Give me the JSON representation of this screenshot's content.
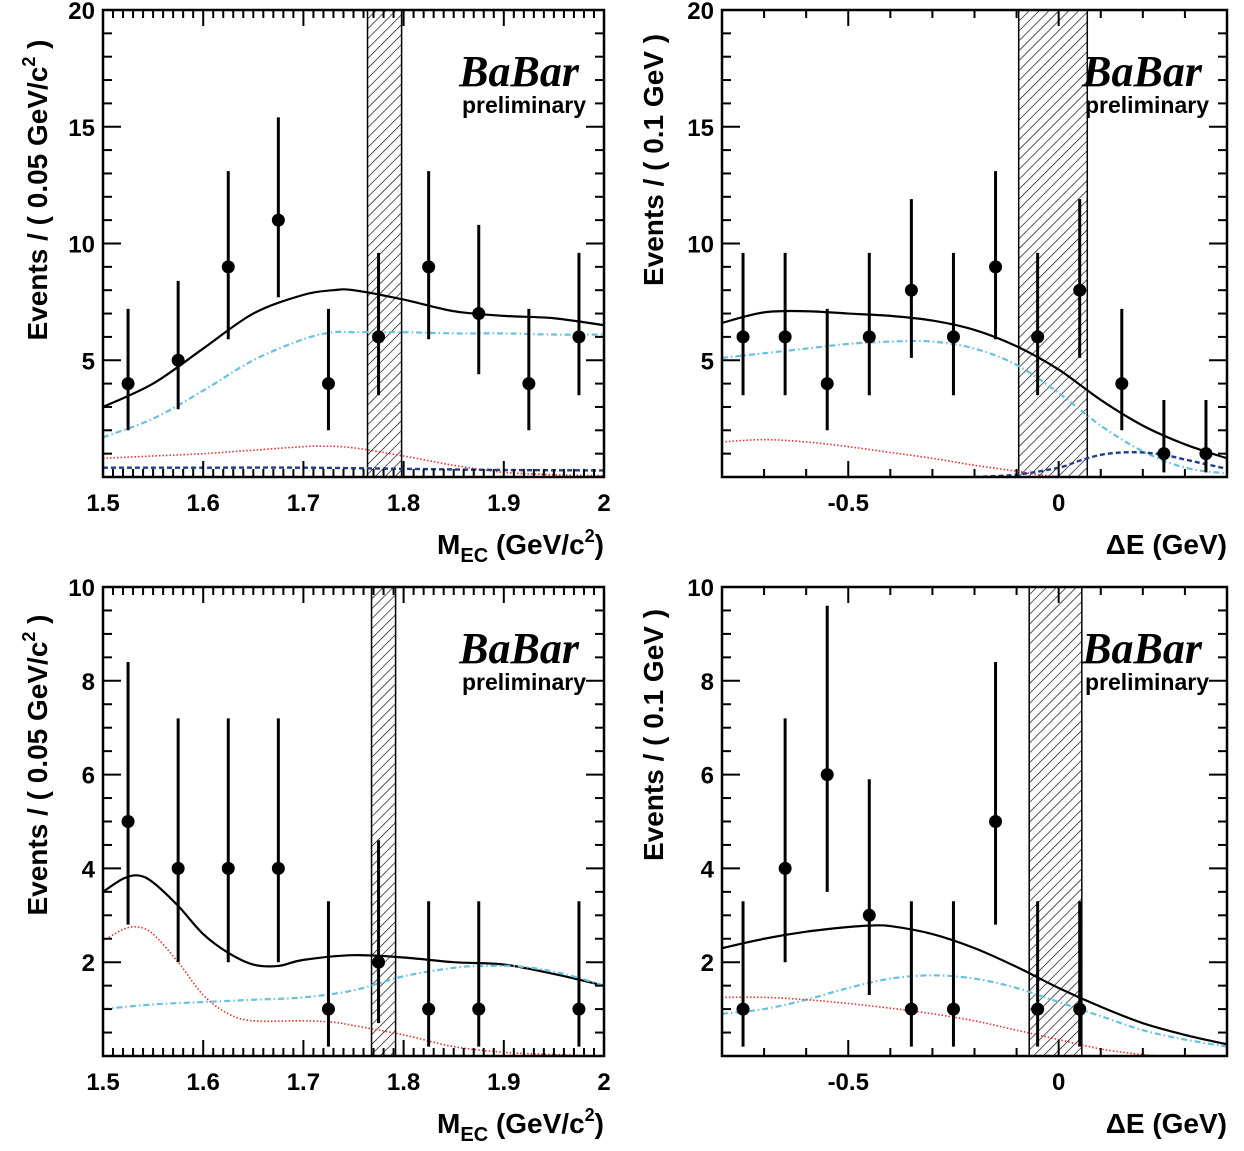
{
  "chart_data": [
    {
      "type": "scatter",
      "xlabel_main": "M",
      "xlabel_sub": "EC",
      "xlabel_unit": " (GeV/c",
      "xlabel_sup": "2",
      "xlabel_close": ")",
      "ylabel_main": "Events / ( 0.05 GeV/c",
      "ylabel_sup": "2",
      "ylabel_close": " )",
      "xlim": [
        1.5,
        2.0
      ],
      "ylim": [
        0,
        20
      ],
      "xticks": [
        {
          "v": 1.5,
          "label": "1.5"
        },
        {
          "v": 1.6,
          "label": "1.6"
        },
        {
          "v": 1.7,
          "label": "1.7"
        },
        {
          "v": 1.8,
          "label": "1.8"
        },
        {
          "v": 1.9,
          "label": "1.9"
        },
        {
          "v": 2.0,
          "label": "2"
        }
      ],
      "xminor": 0.01,
      "yticks": [
        {
          "v": 5,
          "label": "5"
        },
        {
          "v": 10,
          "label": "10"
        },
        {
          "v": 15,
          "label": "15"
        },
        {
          "v": 20,
          "label": "20"
        }
      ],
      "yminor": 1,
      "signal_band": [
        1.764,
        1.798
      ],
      "logo": {
        "line1": "BaBar",
        "line2": "preliminary"
      },
      "points": [
        {
          "x": 1.525,
          "y": 4,
          "lo": 2.0,
          "hi": 7.2
        },
        {
          "x": 1.575,
          "y": 5,
          "lo": 2.9,
          "hi": 8.4
        },
        {
          "x": 1.625,
          "y": 9,
          "lo": 5.9,
          "hi": 13.1
        },
        {
          "x": 1.675,
          "y": 11,
          "lo": 7.7,
          "hi": 15.4
        },
        {
          "x": 1.725,
          "y": 4,
          "lo": 2.0,
          "hi": 7.2
        },
        {
          "x": 1.775,
          "y": 6,
          "lo": 3.5,
          "hi": 9.6
        },
        {
          "x": 1.825,
          "y": 9,
          "lo": 5.9,
          "hi": 13.1
        },
        {
          "x": 1.875,
          "y": 7,
          "lo": 4.4,
          "hi": 10.8
        },
        {
          "x": 1.925,
          "y": 4,
          "lo": 2.0,
          "hi": 7.2
        },
        {
          "x": 1.975,
          "y": 6,
          "lo": 3.5,
          "hi": 9.6
        }
      ],
      "curves": [
        {
          "style": "total",
          "color": "#000000",
          "x": [
            1.5,
            1.55,
            1.6,
            1.65,
            1.7,
            1.73,
            1.75,
            1.8,
            1.85,
            1.9,
            1.95,
            2.0
          ],
          "y": [
            3.0,
            4.0,
            5.5,
            7.0,
            7.8,
            8.0,
            8.0,
            7.6,
            7.1,
            6.9,
            6.8,
            6.5
          ]
        },
        {
          "style": "dashdot",
          "color": "#66c2dd",
          "x": [
            1.5,
            1.55,
            1.6,
            1.65,
            1.7,
            1.73,
            1.75,
            1.8,
            1.85,
            1.9,
            1.95,
            2.0
          ],
          "y": [
            1.7,
            2.5,
            3.7,
            5.0,
            5.9,
            6.2,
            6.2,
            6.2,
            6.15,
            6.15,
            6.1,
            6.1
          ]
        },
        {
          "style": "dotted",
          "color": "#e03030",
          "x": [
            1.5,
            1.55,
            1.6,
            1.65,
            1.7,
            1.72,
            1.75,
            1.8,
            1.85,
            1.9,
            1.95,
            2.0
          ],
          "y": [
            0.8,
            0.9,
            1.0,
            1.15,
            1.3,
            1.32,
            1.25,
            0.9,
            0.5,
            0.2,
            0.1,
            0.05
          ]
        },
        {
          "style": "dashed",
          "color": "#1f3d8c",
          "x": [
            1.5,
            1.6,
            1.7,
            1.8,
            1.9,
            2.0
          ],
          "y": [
            0.4,
            0.4,
            0.4,
            0.35,
            0.3,
            0.28
          ]
        }
      ]
    },
    {
      "type": "scatter",
      "xlabel_main": "ΔE (GeV)",
      "ylabel_main": "Events / ( 0.1 GeV )",
      "xlim": [
        -0.8,
        0.4
      ],
      "ylim": [
        0,
        20
      ],
      "xticks": [
        {
          "v": -0.5,
          "label": "-0.5"
        },
        {
          "v": 0,
          "label": "0"
        }
      ],
      "xminor": 0.1,
      "yticks": [
        {
          "v": 5,
          "label": "5"
        },
        {
          "v": 10,
          "label": "10"
        },
        {
          "v": 15,
          "label": "15"
        },
        {
          "v": 20,
          "label": "20"
        }
      ],
      "yminor": 1,
      "signal_band": [
        -0.095,
        0.068
      ],
      "logo": {
        "line1": "BaBar",
        "line2": "preliminary"
      },
      "points": [
        {
          "x": -0.75,
          "y": 6,
          "lo": 3.5,
          "hi": 9.6
        },
        {
          "x": -0.65,
          "y": 6,
          "lo": 3.5,
          "hi": 9.6
        },
        {
          "x": -0.55,
          "y": 4,
          "lo": 2.0,
          "hi": 7.2
        },
        {
          "x": -0.45,
          "y": 6,
          "lo": 3.5,
          "hi": 9.6
        },
        {
          "x": -0.35,
          "y": 8,
          "lo": 5.1,
          "hi": 11.9
        },
        {
          "x": -0.25,
          "y": 6,
          "lo": 3.5,
          "hi": 9.6
        },
        {
          "x": -0.15,
          "y": 9,
          "lo": 5.9,
          "hi": 13.1
        },
        {
          "x": -0.05,
          "y": 6,
          "lo": 3.5,
          "hi": 9.6
        },
        {
          "x": 0.05,
          "y": 8,
          "lo": 5.1,
          "hi": 11.9
        },
        {
          "x": 0.15,
          "y": 4,
          "lo": 2.0,
          "hi": 7.2
        },
        {
          "x": 0.25,
          "y": 1,
          "lo": 0.2,
          "hi": 3.3
        },
        {
          "x": 0.35,
          "y": 1,
          "lo": 0.2,
          "hi": 3.3
        }
      ],
      "curves": [
        {
          "style": "total",
          "color": "#000000",
          "x": [
            -0.8,
            -0.7,
            -0.6,
            -0.5,
            -0.4,
            -0.3,
            -0.2,
            -0.1,
            0.0,
            0.1,
            0.2,
            0.3,
            0.4
          ],
          "y": [
            6.6,
            7.05,
            7.1,
            7.0,
            6.9,
            6.7,
            6.3,
            5.6,
            4.6,
            3.3,
            2.2,
            1.4,
            0.8
          ]
        },
        {
          "style": "dashdot",
          "color": "#66c2dd",
          "x": [
            -0.8,
            -0.7,
            -0.6,
            -0.5,
            -0.4,
            -0.3,
            -0.2,
            -0.1,
            0.0,
            0.1,
            0.2,
            0.3,
            0.4
          ],
          "y": [
            5.1,
            5.3,
            5.5,
            5.7,
            5.8,
            5.8,
            5.5,
            4.8,
            3.6,
            2.2,
            1.1,
            0.4,
            0.15
          ]
        },
        {
          "style": "dotted",
          "color": "#e03030",
          "x": [
            -0.8,
            -0.7,
            -0.6,
            -0.5,
            -0.4,
            -0.3,
            -0.2,
            -0.1,
            -0.05,
            0.0
          ],
          "y": [
            1.5,
            1.6,
            1.5,
            1.3,
            1.05,
            0.8,
            0.5,
            0.25,
            0.1,
            0.02
          ]
        },
        {
          "style": "dashed",
          "color": "#1f3d8c",
          "x": [
            -0.2,
            -0.1,
            0.0,
            0.05,
            0.1,
            0.15,
            0.2,
            0.25,
            0.3,
            0.35,
            0.4
          ],
          "y": [
            0.0,
            0.1,
            0.4,
            0.7,
            0.95,
            1.05,
            1.05,
            0.95,
            0.75,
            0.55,
            0.35
          ]
        }
      ]
    },
    {
      "type": "scatter",
      "xlabel_main": "M",
      "xlabel_sub": "EC",
      "xlabel_unit": " (GeV/c",
      "xlabel_sup": "2",
      "xlabel_close": ")",
      "ylabel_main": "Events / ( 0.05 GeV/c",
      "ylabel_sup": "2",
      "ylabel_close": " )",
      "xlim": [
        1.5,
        2.0
      ],
      "ylim": [
        0,
        10
      ],
      "xticks": [
        {
          "v": 1.5,
          "label": "1.5"
        },
        {
          "v": 1.6,
          "label": "1.6"
        },
        {
          "v": 1.7,
          "label": "1.7"
        },
        {
          "v": 1.8,
          "label": "1.8"
        },
        {
          "v": 1.9,
          "label": "1.9"
        },
        {
          "v": 2.0,
          "label": "2"
        }
      ],
      "xminor": 0.01,
      "yticks": [
        {
          "v": 2,
          "label": "2"
        },
        {
          "v": 4,
          "label": "4"
        },
        {
          "v": 6,
          "label": "6"
        },
        {
          "v": 8,
          "label": "8"
        },
        {
          "v": 10,
          "label": "10"
        }
      ],
      "yminor": 0.5,
      "signal_band": [
        1.768,
        1.792
      ],
      "logo": {
        "line1": "BaBar",
        "line2": "preliminary"
      },
      "points": [
        {
          "x": 1.525,
          "y": 5,
          "lo": 2.8,
          "hi": 8.4
        },
        {
          "x": 1.575,
          "y": 4,
          "lo": 2.0,
          "hi": 7.2
        },
        {
          "x": 1.625,
          "y": 4,
          "lo": 2.0,
          "hi": 7.2
        },
        {
          "x": 1.675,
          "y": 4,
          "lo": 2.0,
          "hi": 7.2
        },
        {
          "x": 1.725,
          "y": 1,
          "lo": 0.2,
          "hi": 3.3
        },
        {
          "x": 1.775,
          "y": 2,
          "lo": 0.7,
          "hi": 4.6
        },
        {
          "x": 1.825,
          "y": 1,
          "lo": 0.2,
          "hi": 3.3
        },
        {
          "x": 1.875,
          "y": 1,
          "lo": 0.2,
          "hi": 3.3
        },
        {
          "x": 1.975,
          "y": 1,
          "lo": 0.2,
          "hi": 3.3
        }
      ],
      "curves": [
        {
          "style": "total",
          "color": "#000000",
          "x": [
            1.5,
            1.52,
            1.535,
            1.55,
            1.575,
            1.6,
            1.625,
            1.65,
            1.675,
            1.7,
            1.75,
            1.8,
            1.85,
            1.9,
            1.95,
            2.0
          ],
          "y": [
            3.5,
            3.78,
            3.85,
            3.7,
            3.2,
            2.6,
            2.2,
            1.95,
            1.92,
            2.05,
            2.15,
            2.1,
            2.0,
            1.95,
            1.75,
            1.5
          ]
        },
        {
          "style": "dashdot",
          "color": "#66c2dd",
          "x": [
            1.5,
            1.55,
            1.6,
            1.65,
            1.7,
            1.75,
            1.8,
            1.85,
            1.88,
            1.92,
            1.96,
            2.0
          ],
          "y": [
            1.0,
            1.1,
            1.15,
            1.2,
            1.25,
            1.4,
            1.7,
            1.88,
            1.92,
            1.9,
            1.75,
            1.5
          ]
        },
        {
          "style": "dotted",
          "color": "#e03030",
          "x": [
            1.5,
            1.52,
            1.535,
            1.55,
            1.575,
            1.6,
            1.625,
            1.65,
            1.7,
            1.73,
            1.75,
            1.8,
            1.85,
            1.9,
            1.95,
            2.0
          ],
          "y": [
            2.45,
            2.7,
            2.75,
            2.6,
            2.0,
            1.3,
            0.9,
            0.75,
            0.75,
            0.72,
            0.65,
            0.45,
            0.2,
            0.08,
            0.03,
            0.0
          ]
        }
      ]
    },
    {
      "type": "scatter",
      "xlabel_main": "ΔE (GeV)",
      "ylabel_main": "Events / ( 0.1 GeV )",
      "xlim": [
        -0.8,
        0.4
      ],
      "ylim": [
        0,
        10
      ],
      "xticks": [
        {
          "v": -0.5,
          "label": "-0.5"
        },
        {
          "v": 0,
          "label": "0"
        }
      ],
      "xminor": 0.1,
      "yticks": [
        {
          "v": 2,
          "label": "2"
        },
        {
          "v": 4,
          "label": "4"
        },
        {
          "v": 6,
          "label": "6"
        },
        {
          "v": 8,
          "label": "8"
        },
        {
          "v": 10,
          "label": "10"
        }
      ],
      "yminor": 0.5,
      "signal_band": [
        -0.07,
        0.055
      ],
      "logo": {
        "line1": "BaBar",
        "line2": "preliminary"
      },
      "points": [
        {
          "x": -0.75,
          "y": 1,
          "lo": 0.2,
          "hi": 3.3
        },
        {
          "x": -0.65,
          "y": 4,
          "lo": 2.0,
          "hi": 7.2
        },
        {
          "x": -0.55,
          "y": 6,
          "lo": 3.5,
          "hi": 9.6
        },
        {
          "x": -0.45,
          "y": 3,
          "lo": 1.3,
          "hi": 5.9
        },
        {
          "x": -0.35,
          "y": 1,
          "lo": 0.2,
          "hi": 3.3
        },
        {
          "x": -0.25,
          "y": 1,
          "lo": 0.2,
          "hi": 3.3
        },
        {
          "x": -0.15,
          "y": 5,
          "lo": 2.8,
          "hi": 8.4
        },
        {
          "x": -0.05,
          "y": 1,
          "lo": 0.2,
          "hi": 3.3
        },
        {
          "x": 0.05,
          "y": 1,
          "lo": 0.2,
          "hi": 3.3
        }
      ],
      "curves": [
        {
          "style": "total",
          "color": "#000000",
          "x": [
            -0.8,
            -0.7,
            -0.6,
            -0.5,
            -0.45,
            -0.4,
            -0.3,
            -0.2,
            -0.1,
            0.0,
            0.1,
            0.2,
            0.3,
            0.4
          ],
          "y": [
            2.3,
            2.5,
            2.65,
            2.75,
            2.78,
            2.77,
            2.6,
            2.3,
            1.9,
            1.45,
            1.05,
            0.7,
            0.45,
            0.25
          ]
        },
        {
          "style": "dashdot",
          "color": "#66c2dd",
          "x": [
            -0.8,
            -0.7,
            -0.6,
            -0.5,
            -0.4,
            -0.3,
            -0.2,
            -0.1,
            0.0,
            0.1,
            0.2,
            0.3,
            0.4
          ],
          "y": [
            0.9,
            1.0,
            1.2,
            1.45,
            1.65,
            1.72,
            1.65,
            1.45,
            1.15,
            0.85,
            0.55,
            0.35,
            0.2
          ]
        },
        {
          "style": "dotted",
          "color": "#e03030",
          "x": [
            -0.8,
            -0.7,
            -0.6,
            -0.5,
            -0.4,
            -0.3,
            -0.2,
            -0.1,
            0.0,
            0.1,
            0.2,
            0.25
          ],
          "y": [
            1.25,
            1.25,
            1.2,
            1.12,
            1.02,
            0.9,
            0.75,
            0.55,
            0.35,
            0.15,
            0.03,
            0.0
          ]
        }
      ]
    }
  ]
}
